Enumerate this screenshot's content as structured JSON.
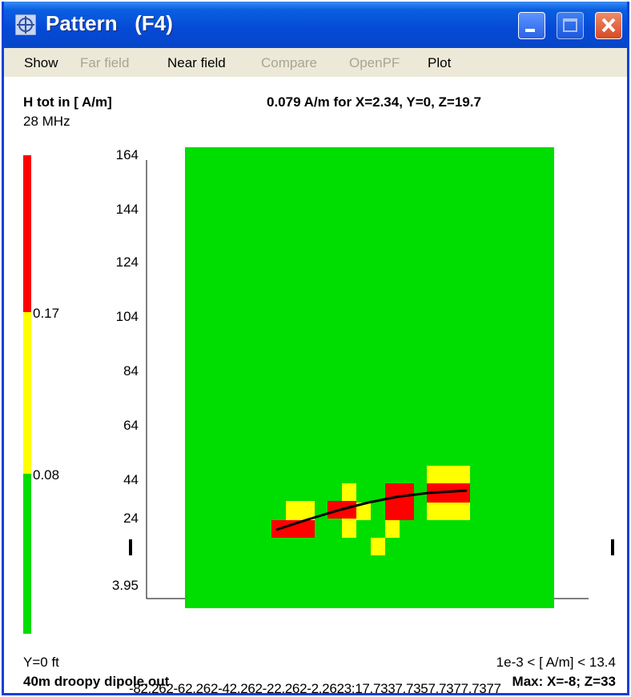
{
  "window": {
    "title": "Pattern   (F4)",
    "minimize_label": "Minimize",
    "maximize_label": "Maximize",
    "close_label": "Close"
  },
  "menu": [
    {
      "label": "Show",
      "enabled": true
    },
    {
      "label": "Far field",
      "enabled": false
    },
    {
      "label": "Near field",
      "enabled": true
    },
    {
      "label": "Compare",
      "enabled": false
    },
    {
      "label": "OpenPF",
      "enabled": false
    },
    {
      "label": "Plot",
      "enabled": true
    }
  ],
  "header": {
    "quantity": "H tot in [ A/m]",
    "frequency": "28 MHz",
    "readout": "0.079  A/m for X=2.34, Y=0, Z=19.7"
  },
  "legend": {
    "upper_value": "0.17",
    "lower_value": "0.08",
    "colors": {
      "high": "#ff0000",
      "mid": "#ffff00",
      "low": "#00dd00"
    }
  },
  "plot": {
    "y_ticks": [
      "164",
      "144",
      "124",
      "104",
      "84",
      "64",
      "44",
      "24",
      "3.95"
    ],
    "x_ticks_text": "-82.262-62.262-42.262-22.262-2.2623:17.7337.7357.7377.7377",
    "background_color": "#00dd00"
  },
  "footer": {
    "y_plane": "Y=0 ft",
    "range": "1e-3 < [ A/m] < 13.4",
    "file": "40m droopy dipole.out",
    "max": "Max: X=-8; Z=33"
  }
}
